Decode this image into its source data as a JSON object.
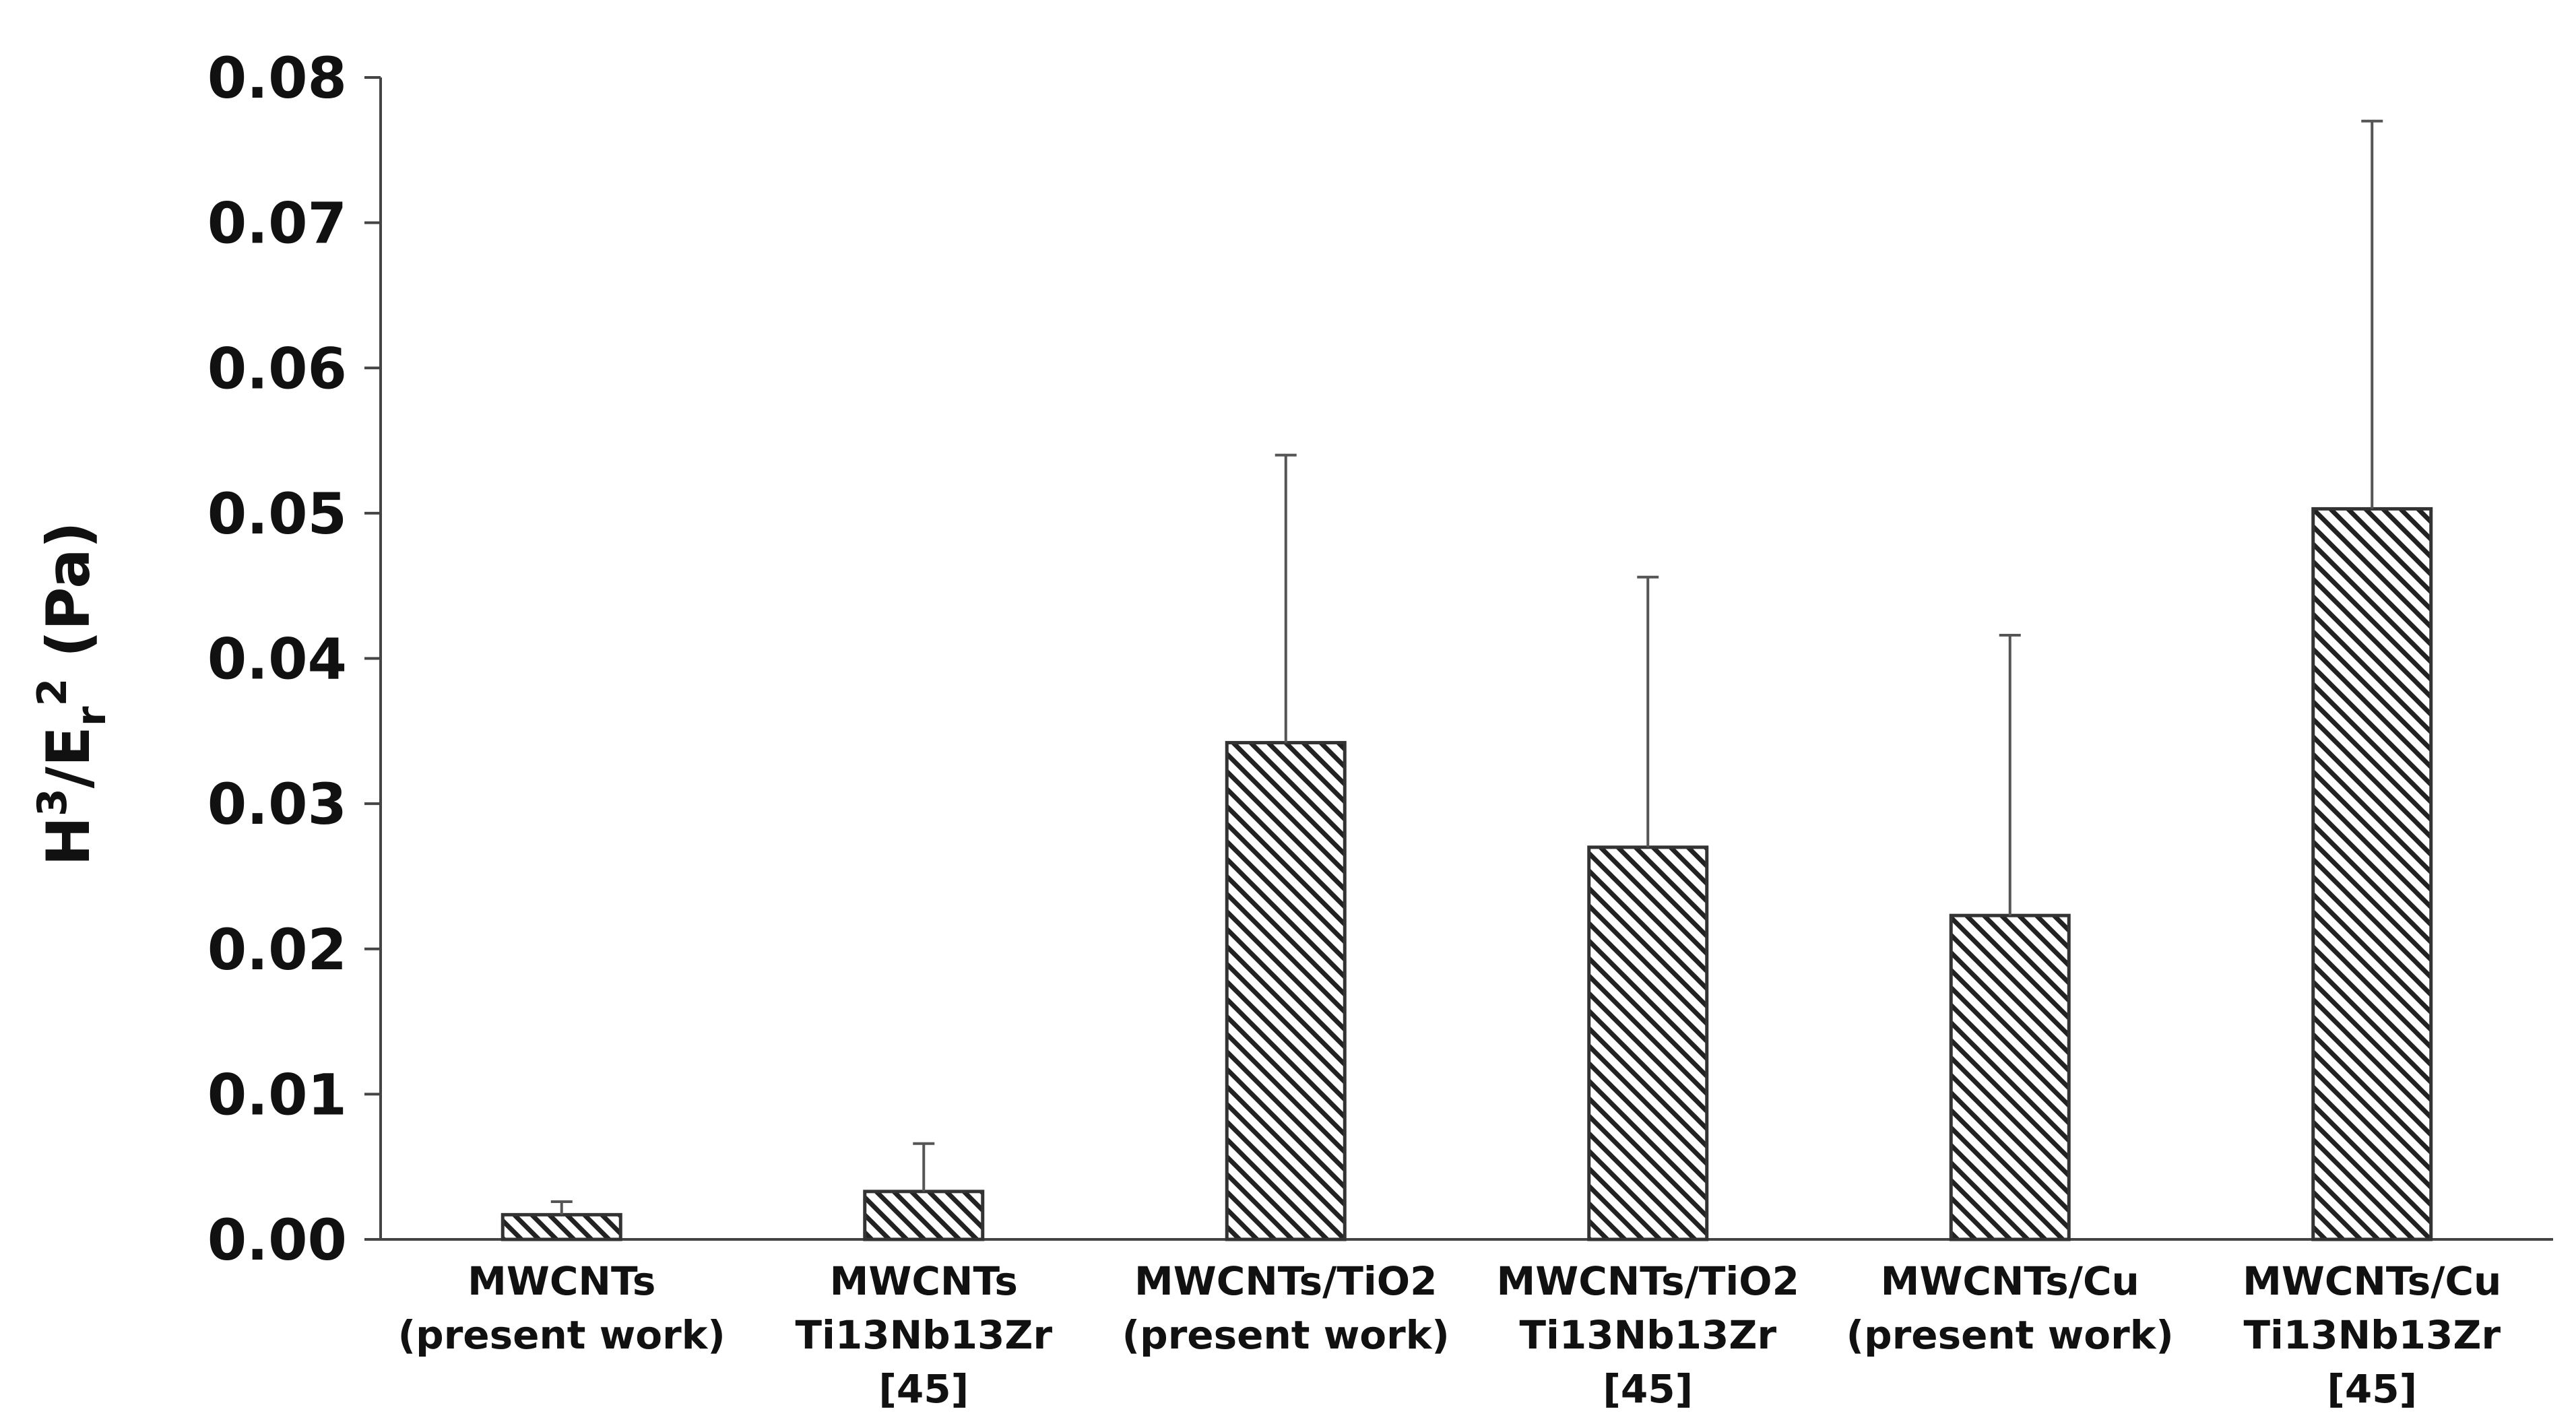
{
  "chart_data": {
    "type": "bar",
    "title": "",
    "xlabel": "",
    "ylabel": {
      "base": "H",
      "sup1": "3",
      "mid": "/E",
      "sub": "r",
      "sup2": "2",
      "unit": " (Pa)"
    },
    "ylim": [
      0,
      0.08
    ],
    "yticks": [
      "0.00",
      "0.01",
      "0.02",
      "0.03",
      "0.04",
      "0.05",
      "0.06",
      "0.07",
      "0.08"
    ],
    "ytick_values": [
      0,
      0.01,
      0.02,
      0.03,
      0.04,
      0.05,
      0.06,
      0.07,
      0.08
    ],
    "categories": [
      [
        "MWCNTs",
        "(present work)"
      ],
      [
        "MWCNTs",
        "Ti13Nb13Zr",
        "[45]"
      ],
      [
        "MWCNTs/TiO2",
        "(present work)"
      ],
      [
        "MWCNTs/TiO2",
        "Ti13Nb13Zr",
        "[45]"
      ],
      [
        "MWCNTs/Cu",
        "(present work)"
      ],
      [
        "MWCNTs/Cu",
        "Ti13Nb13Zr",
        "[45]"
      ]
    ],
    "values": [
      0.0017,
      0.0033,
      0.0342,
      0.027,
      0.0223,
      0.0503
    ],
    "error_upper": [
      0.0026,
      0.0066,
      0.054,
      0.0456,
      0.0416,
      0.077
    ],
    "grid": false,
    "legend": "none",
    "bar_pattern": "diagonal-hatch",
    "colors": {
      "bar_fill": "#ffffff",
      "hatch": "#222222",
      "axis": "#444444"
    }
  }
}
